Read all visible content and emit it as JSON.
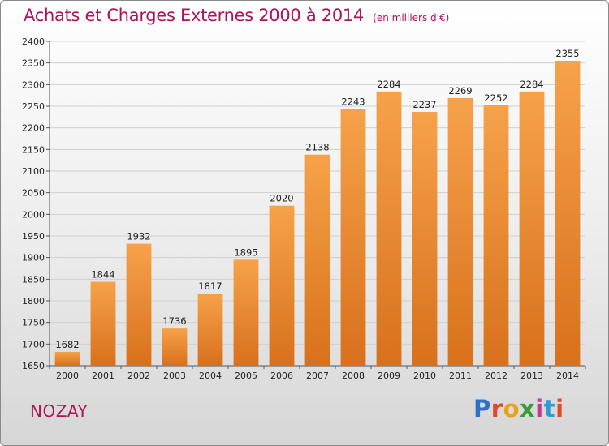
{
  "header": {
    "title": "Achats et Charges Externes 2000 à 2014",
    "unit": "(en milliers d'€)"
  },
  "footer": {
    "place": "NOZAY",
    "logo_text": "Proxiti",
    "logo_colors": [
      "#2f6fc4",
      "#e04a2a",
      "#e8a21a",
      "#3a9b3a",
      "#c23a8c",
      "#2f9bd6",
      "#e04a2a"
    ]
  },
  "colors": {
    "bar_light": "#f6a24a",
    "bar_dark": "#d8701c",
    "grid": "#cfcfcf",
    "title": "#b0125a"
  },
  "chart_data": {
    "type": "bar",
    "categories": [
      "2000",
      "2001",
      "2002",
      "2003",
      "2004",
      "2005",
      "2006",
      "2007",
      "2008",
      "2009",
      "2010",
      "2011",
      "2012",
      "2013",
      "2014"
    ],
    "values": [
      1682,
      1844,
      1932,
      1736,
      1817,
      1895,
      2020,
      2138,
      2243,
      2284,
      2237,
      2269,
      2252,
      2284,
      2355
    ],
    "ylim": [
      1650,
      2400
    ],
    "yticks": [
      1650,
      1700,
      1750,
      1800,
      1850,
      1900,
      1950,
      2000,
      2050,
      2100,
      2150,
      2200,
      2250,
      2300,
      2350,
      2400
    ],
    "grid": true,
    "show_data_labels": true
  }
}
